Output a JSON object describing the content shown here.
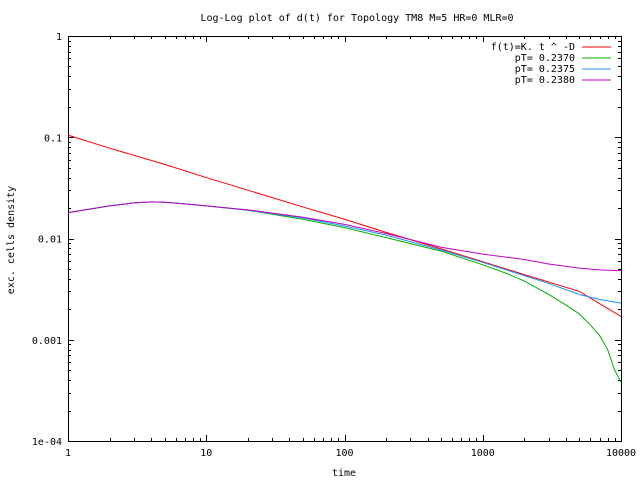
{
  "chart_data": {
    "type": "line",
    "title": "Log-Log plot of d(t) for Topology TM8 M=5 HR=0 MLR=0",
    "xlabel": "time",
    "ylabel": "exc. cells density",
    "x_scale": "log",
    "y_scale": "log",
    "xlim": [
      1,
      10000
    ],
    "ylim": [
      0.0001,
      1
    ],
    "x_ticks": [
      {
        "value": 1,
        "label": "1"
      },
      {
        "value": 10,
        "label": "10"
      },
      {
        "value": 100,
        "label": "100"
      },
      {
        "value": 1000,
        "label": "1000"
      },
      {
        "value": 10000,
        "label": "10000"
      }
    ],
    "y_ticks": [
      {
        "value": 0.0001,
        "label": "1e-04"
      },
      {
        "value": 0.001,
        "label": "0.001"
      },
      {
        "value": 0.01,
        "label": "0.01"
      },
      {
        "value": 0.1,
        "label": "0.1"
      },
      {
        "value": 1,
        "label": "1"
      }
    ],
    "grid": false,
    "legend_position": "top-right",
    "series": [
      {
        "name": "f(t)=K. t ^ -D",
        "color": "#ff0000",
        "x": [
          1,
          2,
          5,
          10,
          20,
          50,
          100,
          200,
          500,
          1000,
          2000,
          5000,
          10000
        ],
        "y": [
          0.105,
          0.078,
          0.054,
          0.04,
          0.03,
          0.0205,
          0.0155,
          0.0115,
          0.0079,
          0.0059,
          0.0044,
          0.003,
          0.0017
        ]
      },
      {
        "name": "pT= 0.2370",
        "color": "#00b000",
        "x": [
          1,
          2,
          3,
          4,
          5,
          7,
          10,
          20,
          50,
          100,
          200,
          500,
          1000,
          1500,
          2000,
          3000,
          4000,
          5000,
          6000,
          7000,
          8000,
          9000,
          10000
        ],
        "y": [
          0.018,
          0.021,
          0.0225,
          0.023,
          0.0228,
          0.022,
          0.021,
          0.019,
          0.0155,
          0.0128,
          0.0102,
          0.0075,
          0.0055,
          0.0045,
          0.0038,
          0.0028,
          0.0022,
          0.0018,
          0.0014,
          0.0011,
          0.0008,
          0.0005,
          0.00038
        ]
      },
      {
        "name": "pT= 0.2375",
        "color": "#1e90ff",
        "x": [
          1,
          2,
          3,
          4,
          5,
          7,
          10,
          20,
          50,
          100,
          200,
          500,
          1000,
          2000,
          3000,
          5000,
          7000,
          10000
        ],
        "y": [
          0.018,
          0.021,
          0.0225,
          0.023,
          0.0228,
          0.022,
          0.021,
          0.019,
          0.016,
          0.0133,
          0.0108,
          0.0077,
          0.0058,
          0.0043,
          0.0036,
          0.0028,
          0.0025,
          0.0023
        ]
      },
      {
        "name": "pT= 0.2380",
        "color": "#c000c0",
        "x": [
          1,
          2,
          3,
          4,
          5,
          7,
          10,
          20,
          50,
          100,
          200,
          500,
          1000,
          2000,
          3000,
          5000,
          7000,
          10000
        ],
        "y": [
          0.018,
          0.021,
          0.0225,
          0.023,
          0.0228,
          0.022,
          0.021,
          0.0192,
          0.0162,
          0.0138,
          0.0112,
          0.0082,
          0.007,
          0.0062,
          0.0056,
          0.0051,
          0.0049,
          0.0048
        ]
      }
    ]
  }
}
